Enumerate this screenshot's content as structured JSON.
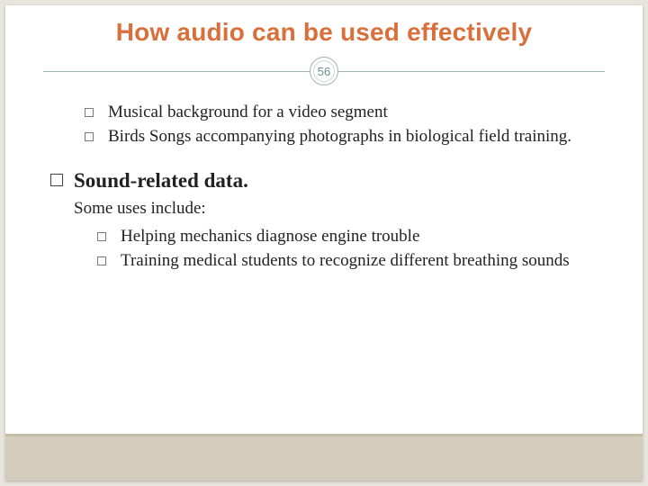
{
  "title": "How audio can be used effectively",
  "page_number": "56",
  "colors": {
    "title": "#d96f3a",
    "divider": "#9fb8b8",
    "slide_bg": "#ffffff",
    "outer_bg": "#e8e5de",
    "band_bg": "#d4cdbd",
    "band_border": "#c6bda8",
    "body_text": "#222222"
  },
  "top_bullets": [
    "Musical background for a video segment",
    "Birds Songs accompanying photographs in biological field training."
  ],
  "section": {
    "heading": "Sound-related data.",
    "subtext": "Some uses include:",
    "bullets": [
      "Helping mechanics diagnose engine trouble",
      "Training medical students to recognize different breathing sounds"
    ]
  }
}
